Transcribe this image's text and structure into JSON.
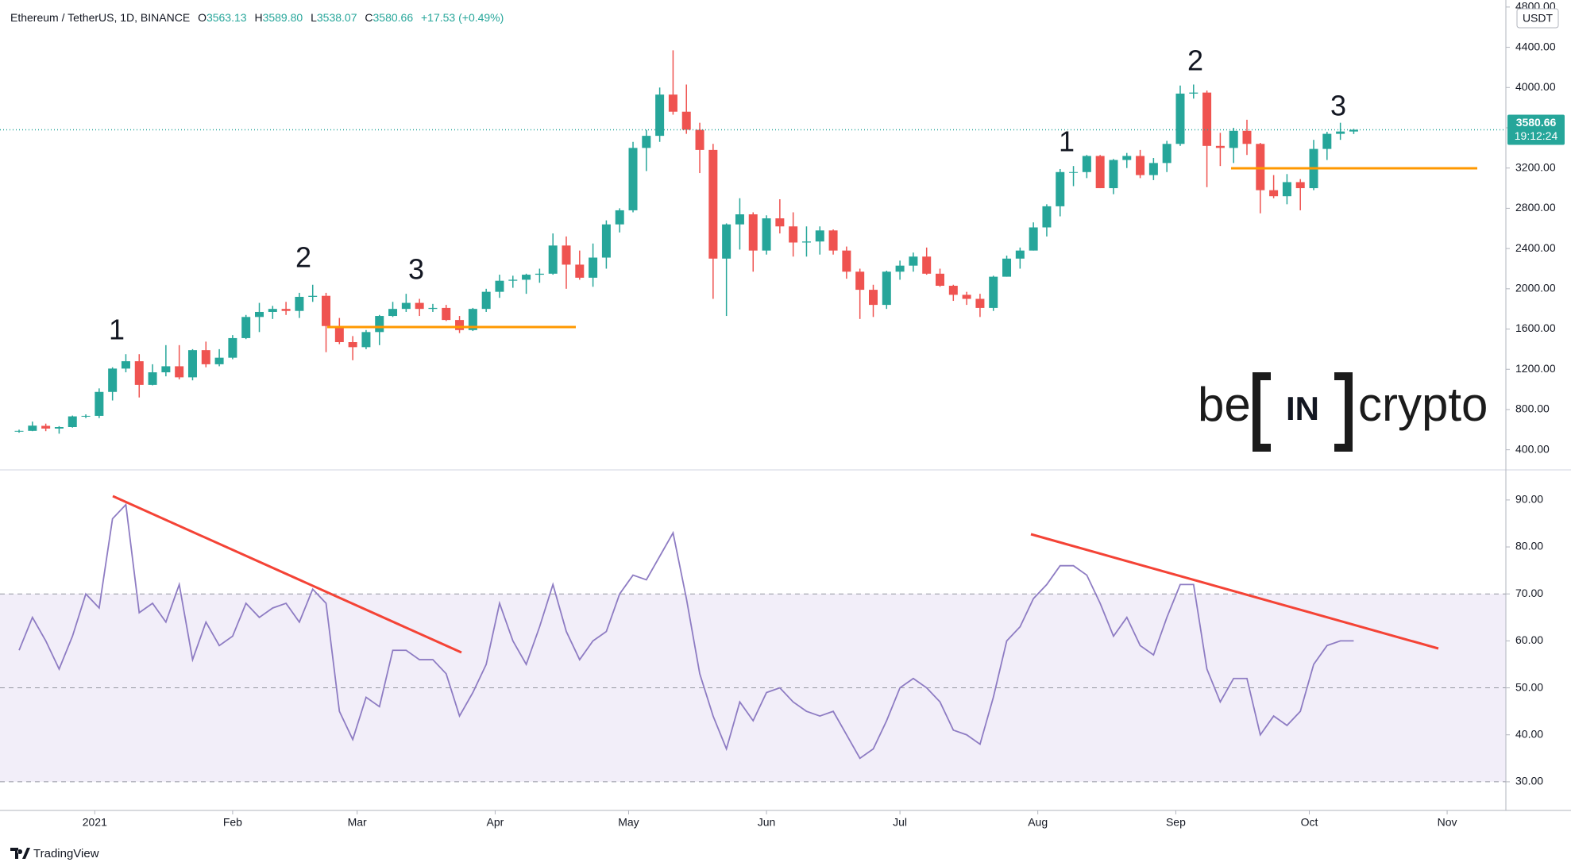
{
  "header": {
    "symbol": "Ethereum / TetherUS, 1D, BINANCE",
    "ohlc": [
      [
        "O",
        "3563.13"
      ],
      [
        "H",
        "3589.80"
      ],
      [
        "L",
        "3538.07"
      ],
      [
        "C",
        "3580.66"
      ]
    ],
    "change": "+17.53 (+0.49%)"
  },
  "logo": {
    "pre": "be",
    "mid": "IN",
    "post": "crypto"
  },
  "footer": "TradingView",
  "chart_data": [
    {
      "type": "candlestick",
      "currency": "USDT",
      "last_label": "3580.66",
      "countdown": "19:12:24",
      "up_color": "#26a69a",
      "down_color": "#ef5350",
      "grid": false,
      "annotations": [
        "1",
        "2",
        "3",
        "1",
        "2",
        "3"
      ],
      "open": [
        585,
        588,
        638,
        611,
        626,
        732,
        737,
        975,
        1207,
        1280,
        1045,
        1170,
        1230,
        1120,
        1390,
        1250,
        1315,
        1510,
        1720,
        1770,
        1800,
        1780,
        1920,
        1930,
        1630,
        1470,
        1420,
        1570,
        1730,
        1800,
        1860,
        1800,
        1810,
        1690,
        1590,
        1800,
        1970,
        2080,
        2090,
        2140,
        2150,
        2430,
        2240,
        2110,
        2310,
        2640,
        2780,
        3400,
        3520,
        3930,
        3760,
        3580,
        3380,
        2300,
        2640,
        2740,
        2380,
        2700,
        2620,
        2460,
        2470,
        2580,
        2380,
        2170,
        1990,
        1840,
        2170,
        2230,
        2320,
        2150,
        2030,
        1940,
        1900,
        1810,
        2120,
        2300,
        2380,
        2610,
        2820,
        3160,
        3160,
        3320,
        3000,
        3280,
        3320,
        3130,
        3250,
        3440,
        3940,
        3950,
        3420,
        3400,
        3570,
        3440,
        2980,
        2920,
        3060,
        3000,
        3390,
        3540,
        3563.13
      ],
      "high": [
        600,
        680,
        660,
        635,
        740,
        752,
        1010,
        1220,
        1350,
        1350,
        1250,
        1440,
        1440,
        1400,
        1475,
        1400,
        1540,
        1740,
        1860,
        1830,
        1870,
        1960,
        2040,
        1960,
        1710,
        1530,
        1590,
        1740,
        1870,
        1950,
        1900,
        1850,
        1840,
        1730,
        1810,
        2000,
        2140,
        2130,
        2150,
        2200,
        2550,
        2520,
        2380,
        2450,
        2680,
        2800,
        3460,
        3580,
        4000,
        4370,
        4030,
        3650,
        3440,
        2650,
        2900,
        2760,
        2730,
        2890,
        2760,
        2620,
        2620,
        2590,
        2420,
        2200,
        2040,
        2180,
        2280,
        2360,
        2410,
        2200,
        2040,
        1970,
        1950,
        2130,
        2330,
        2410,
        2660,
        2840,
        3190,
        3220,
        3330,
        3330,
        3290,
        3350,
        3380,
        3300,
        3470,
        4020,
        4030,
        3970,
        3550,
        3600,
        3680,
        3450,
        3130,
        3140,
        3090,
        3480,
        3560,
        3650,
        3589.8
      ],
      "low": [
        570,
        585,
        585,
        560,
        620,
        715,
        715,
        890,
        1170,
        920,
        1040,
        1130,
        1100,
        1090,
        1220,
        1230,
        1300,
        1500,
        1570,
        1700,
        1740,
        1710,
        1870,
        1370,
        1450,
        1290,
        1400,
        1440,
        1720,
        1770,
        1730,
        1770,
        1680,
        1560,
        1580,
        1770,
        1910,
        2010,
        1950,
        2060,
        2140,
        2000,
        2090,
        2020,
        2200,
        2560,
        2760,
        3170,
        3460,
        3730,
        3540,
        3150,
        1900,
        1730,
        2390,
        2170,
        2340,
        2550,
        2320,
        2320,
        2340,
        2340,
        2100,
        1700,
        1720,
        1800,
        2090,
        2170,
        2140,
        2020,
        1880,
        1840,
        1720,
        1780,
        2120,
        2200,
        2380,
        2520,
        2720,
        3020,
        3100,
        3000,
        2940,
        3200,
        3100,
        3080,
        3160,
        3420,
        3890,
        3010,
        3220,
        3250,
        3330,
        2750,
        2900,
        2840,
        2780,
        2980,
        3280,
        3480,
        3538.07
      ],
      "close": [
        588,
        640,
        611,
        626,
        732,
        737,
        975,
        1207,
        1280,
        1045,
        1170,
        1230,
        1120,
        1390,
        1250,
        1315,
        1510,
        1720,
        1770,
        1800,
        1780,
        1920,
        1930,
        1630,
        1470,
        1420,
        1570,
        1730,
        1800,
        1860,
        1800,
        1810,
        1690,
        1590,
        1800,
        1970,
        2080,
        2090,
        2140,
        2150,
        2430,
        2240,
        2110,
        2310,
        2640,
        2780,
        3400,
        3520,
        3930,
        3760,
        3580,
        3380,
        2300,
        2640,
        2740,
        2380,
        2700,
        2620,
        2460,
        2470,
        2580,
        2380,
        2170,
        1990,
        1840,
        2170,
        2230,
        2320,
        2150,
        2030,
        1940,
        1900,
        1810,
        2120,
        2300,
        2380,
        2610,
        2820,
        3160,
        3160,
        3320,
        3000,
        3280,
        3320,
        3130,
        3250,
        3440,
        3940,
        3950,
        3420,
        3400,
        3570,
        3440,
        2980,
        2920,
        3060,
        3000,
        3390,
        3540,
        3563.13,
        3580.66
      ],
      "xlim": [
        -1.43,
        111.4
      ],
      "xticks": [
        {
          "value": 5.67,
          "label": "2021"
        },
        {
          "value": 16,
          "label": "Feb"
        },
        {
          "value": 25.33,
          "label": "Mar"
        },
        {
          "value": 35.67,
          "label": "Apr"
        },
        {
          "value": 45.67,
          "label": "May"
        },
        {
          "value": 56,
          "label": "Jun"
        },
        {
          "value": 66,
          "label": "Jul"
        },
        {
          "value": 76.33,
          "label": "Aug"
        },
        {
          "value": 86.67,
          "label": "Sep"
        },
        {
          "value": 96.67,
          "label": "Oct"
        },
        {
          "value": 107,
          "label": "Nov"
        }
      ],
      "ylim": [
        200,
        4870
      ],
      "yticks": [
        {
          "value": 400,
          "label": "400.00"
        },
        {
          "value": 800,
          "label": "800.00"
        },
        {
          "value": 1200,
          "label": "1200.00"
        },
        {
          "value": 1600,
          "label": "1600.00"
        },
        {
          "value": 2000,
          "label": "2000.00"
        },
        {
          "value": 2400,
          "label": "2400.00"
        },
        {
          "value": 2800,
          "label": "2800.00"
        },
        {
          "value": 3200,
          "label": "3200.00"
        },
        {
          "value": 3600,
          "label": "3600.00"
        },
        {
          "value": 4000,
          "label": "4000.00"
        },
        {
          "value": 4400,
          "label": "4400.00"
        },
        {
          "value": 4800,
          "label": "4800.00"
        }
      ]
    },
    {
      "type": "line",
      "color": "#8e7cc3",
      "band_color": "#7e57c2",
      "levels": [
        30,
        50,
        70
      ],
      "values": [
        58,
        65,
        60,
        54,
        61,
        70,
        67,
        86,
        89,
        66,
        68,
        64,
        72,
        56,
        64,
        59,
        61,
        68,
        65,
        67,
        68,
        64,
        71,
        68,
        45,
        39,
        48,
        46,
        58,
        58,
        56,
        56,
        53,
        44,
        49,
        55,
        68,
        60,
        55,
        63,
        72,
        62,
        56,
        60,
        62,
        70,
        74,
        73,
        78,
        83,
        69,
        53,
        44,
        37,
        47,
        43,
        49,
        50,
        47,
        45,
        44,
        45,
        40,
        35,
        37,
        43,
        50,
        52,
        50,
        47,
        41,
        40,
        38,
        48,
        60,
        63,
        69,
        72,
        76,
        76,
        74,
        68,
        61,
        65,
        59,
        57,
        65,
        72,
        72,
        54,
        47,
        52,
        52,
        40,
        44,
        42,
        45,
        55,
        59,
        60,
        60
      ],
      "xlim": [
        -1.43,
        111.4
      ],
      "ylim": [
        23.9,
        96.4
      ],
      "yticks": [
        {
          "value": 30,
          "label": "30.00"
        },
        {
          "value": 40,
          "label": "40.00"
        },
        {
          "value": 50,
          "label": "50.00"
        },
        {
          "value": 60,
          "label": "60.00"
        },
        {
          "value": 70,
          "label": "70.00"
        },
        {
          "value": 80,
          "label": "80.00"
        },
        {
          "value": 90,
          "label": "90.00"
        }
      ]
    }
  ]
}
